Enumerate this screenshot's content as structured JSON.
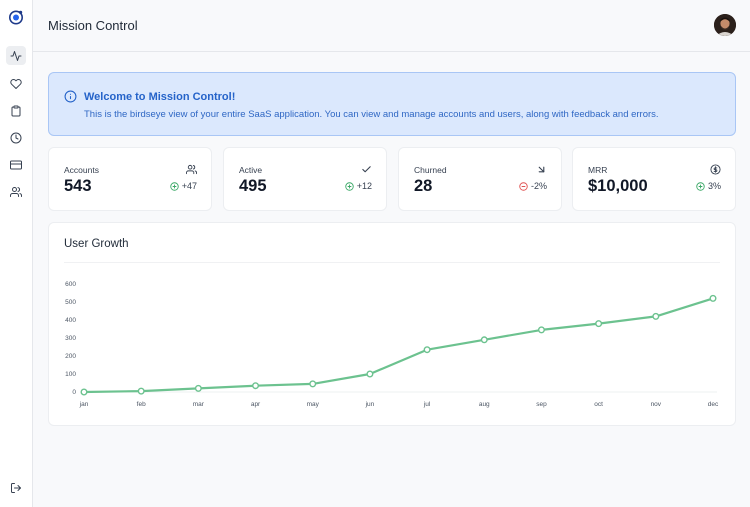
{
  "app": {
    "title": "Mission Control"
  },
  "sidebar": {
    "items": [
      {
        "name": "activity",
        "icon": "activity-icon",
        "active": true
      },
      {
        "name": "favorites",
        "icon": "heart-icon",
        "active": false
      },
      {
        "name": "clipboard",
        "icon": "clipboard-icon",
        "active": false
      },
      {
        "name": "history",
        "icon": "clock-icon",
        "active": false
      },
      {
        "name": "billing",
        "icon": "credit-card-icon",
        "active": false
      },
      {
        "name": "users",
        "icon": "users-icon",
        "active": false
      }
    ],
    "logout_icon": "logout-icon"
  },
  "banner": {
    "title": "Welcome to Mission Control!",
    "text": "This is the birdseye view of your entire SaaS application. You can view and manage accounts and users, along with feedback and errors.",
    "icon": "info-icon"
  },
  "stats": [
    {
      "label": "Accounts",
      "value": "543",
      "change": "+47",
      "icon": "users-icon",
      "trend": "up"
    },
    {
      "label": "Active",
      "value": "495",
      "change": "+12",
      "icon": "check-icon",
      "trend": "up"
    },
    {
      "label": "Churned",
      "value": "28",
      "change": "-2%",
      "icon": "arrow-down-right-icon",
      "trend": "down"
    },
    {
      "label": "MRR",
      "value": "$10,000",
      "change": "3%",
      "icon": "dollar-icon",
      "trend": "up"
    }
  ],
  "chart_data": {
    "type": "line",
    "title": "User Growth",
    "categories": [
      "jan",
      "feb",
      "mar",
      "apr",
      "may",
      "jun",
      "jul",
      "aug",
      "sep",
      "oct",
      "nov",
      "dec"
    ],
    "series": [
      {
        "values": [
          0,
          5,
          20,
          35,
          45,
          100,
          235,
          290,
          345,
          380,
          420,
          520
        ]
      }
    ],
    "y_ticks": [
      "0",
      "100",
      "200",
      "300",
      "400",
      "500",
      "600"
    ],
    "ylim": [
      0,
      600
    ],
    "grid": false,
    "legend": "none"
  },
  "colors": {
    "accent": "#2563c9",
    "line": "#6cc28f",
    "positive": "#3aa866",
    "negative": "#e05252"
  }
}
